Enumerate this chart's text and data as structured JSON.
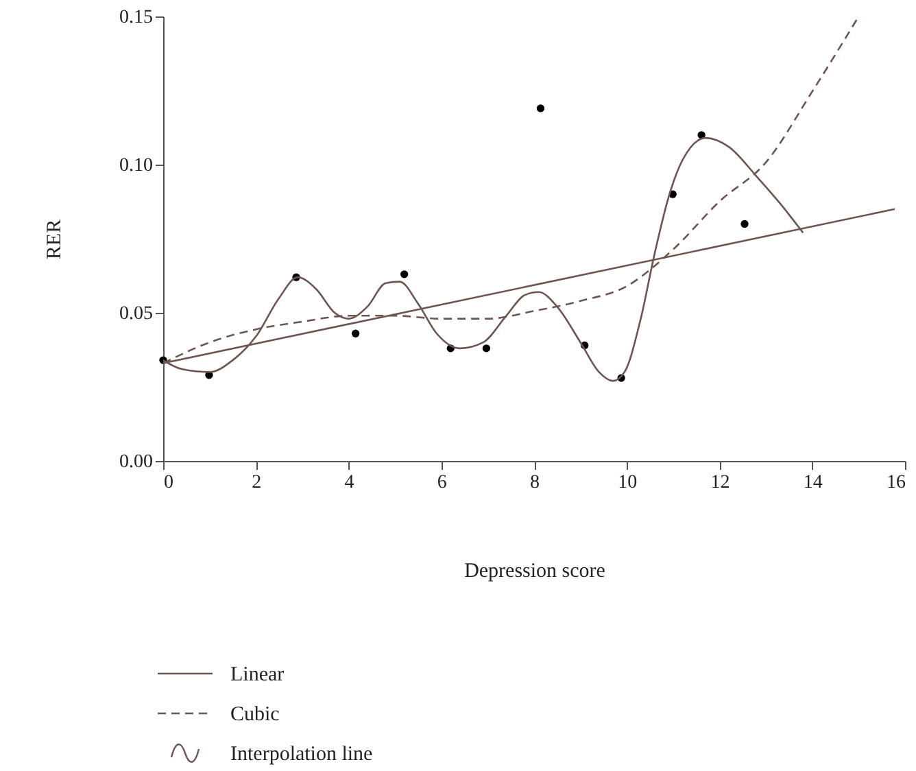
{
  "chart_data": {
    "type": "scatter",
    "xlabel": "Depression score",
    "ylabel": "RER",
    "xlim": [
      0,
      16
    ],
    "xticks": [
      0,
      2,
      4,
      6,
      8,
      10,
      12,
      14,
      16
    ],
    "ylim": [
      0,
      0.15
    ],
    "yticks": [
      {
        "value": 0,
        "label": "0.00"
      },
      {
        "value": 0.05,
        "label": "0.05"
      },
      {
        "value": 0.1,
        "label": "0.10"
      },
      {
        "value": 0.15,
        "label": "0.15"
      }
    ],
    "legend": "bottom",
    "grid": false,
    "series": [
      {
        "marker": "circle",
        "color": "#000000",
        "x": [
          0,
          0.99,
          2.87,
          4.15,
          5.2,
          6.2,
          6.97,
          8.14,
          9.09,
          9.88,
          10.99,
          11.61,
          12.54
        ],
        "values": [
          0.034,
          0.029,
          0.062,
          0.043,
          0.063,
          0.038,
          0.038,
          0.119,
          0.039,
          0.028,
          0.09,
          0.11,
          0.08
        ]
      },
      {
        "name": "Linear",
        "type": "line",
        "line_style": "solid",
        "color": "#6e5550",
        "x": [
          0,
          15.78
        ],
        "values": [
          0.033,
          0.085
        ]
      },
      {
        "name": "Cubic",
        "type": "line",
        "line_style": "dashed",
        "color": "#6e5550",
        "x": [
          0,
          1,
          2,
          3,
          4,
          5,
          6,
          7,
          8,
          9,
          10,
          11,
          12,
          13,
          14,
          15
        ],
        "values": [
          0.033,
          0.04,
          0.0444,
          0.047,
          0.049,
          0.049,
          0.048,
          0.048,
          0.0506,
          0.054,
          0.059,
          0.0714,
          0.0876,
          0.1008,
          0.1247,
          0.15
        ]
      },
      {
        "name": "Interpolation line",
        "type": "line",
        "line_style": "solid",
        "color": "#6e5550",
        "x": [
          0,
          0.4,
          1.0,
          1.5,
          2.0,
          2.5,
          2.9,
          3.3,
          3.7,
          4.0,
          4.4,
          4.8,
          5.1,
          5.5,
          5.9,
          6.4,
          6.9,
          7.4,
          7.8,
          8.1,
          8.5,
          9.0,
          9.4,
          9.7,
          9.95,
          10.3,
          10.6,
          10.9,
          11.2,
          11.7,
          12.2,
          12.8,
          13.3,
          13.8
        ],
        "values": [
          0.034,
          0.031,
          0.03,
          0.034,
          0.042,
          0.055,
          0.062,
          0.058,
          0.05,
          0.048,
          0.052,
          0.06,
          0.0605,
          0.053,
          0.043,
          0.038,
          0.04,
          0.049,
          0.056,
          0.057,
          0.052,
          0.04,
          0.03,
          0.027,
          0.03,
          0.048,
          0.07,
          0.089,
          0.1015,
          0.109,
          0.106,
          0.096,
          0.087,
          0.077
        ]
      }
    ]
  }
}
